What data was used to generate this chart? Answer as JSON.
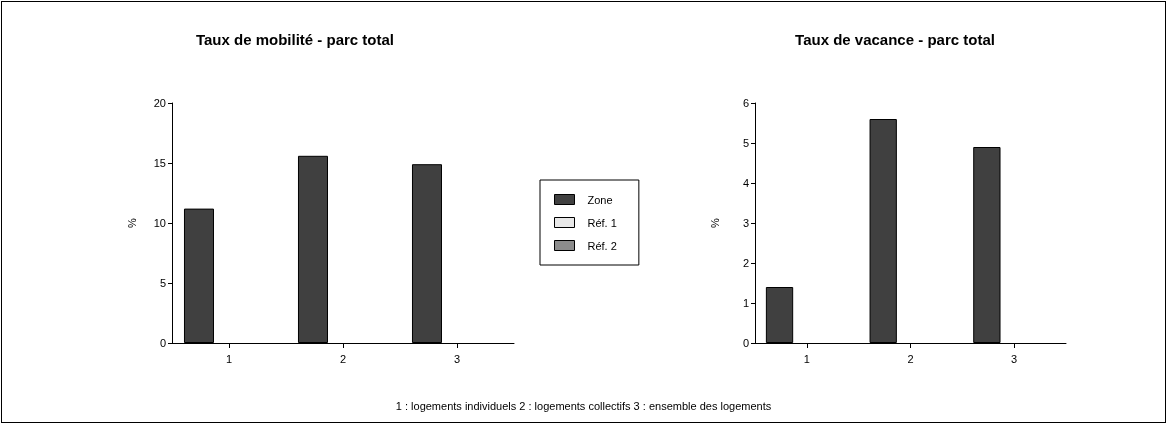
{
  "chart_data": [
    {
      "type": "bar",
      "title": "Taux de mobilité - parc total",
      "ylabel": "%",
      "categories": [
        "1",
        "2",
        "3"
      ],
      "series": [
        {
          "name": "Zone",
          "color": "#404040",
          "values": [
            11.2,
            15.6,
            14.9
          ]
        },
        {
          "name": "Réf. 1",
          "color": "#e8e8e8",
          "values": [
            null,
            null,
            null
          ]
        },
        {
          "name": "Réf. 2",
          "color": "#8c8c8c",
          "values": [
            null,
            null,
            null
          ]
        }
      ],
      "ylim": [
        0,
        20
      ],
      "yticks": [
        0,
        5,
        10,
        15,
        20
      ],
      "grid": false,
      "legend": "right",
      "annotations": [
        "1 : logements individuels    2 : logements collectifs    3 : ensemble des logements"
      ]
    },
    {
      "type": "bar",
      "title": "Taux de vacance - parc total",
      "ylabel": "%",
      "categories": [
        "1",
        "2",
        "3"
      ],
      "series": [
        {
          "color": "#404040",
          "values": [
            1.4,
            5.6,
            4.9
          ]
        },
        {
          "color": "#e8e8e8",
          "values": [
            null,
            null,
            null
          ]
        },
        {
          "color": "#8c8c8c",
          "values": [
            null,
            null,
            null
          ]
        }
      ],
      "ylim": [
        0,
        6
      ],
      "yticks": [
        0,
        1,
        2,
        3,
        4,
        5,
        6
      ],
      "grid": false
    }
  ]
}
